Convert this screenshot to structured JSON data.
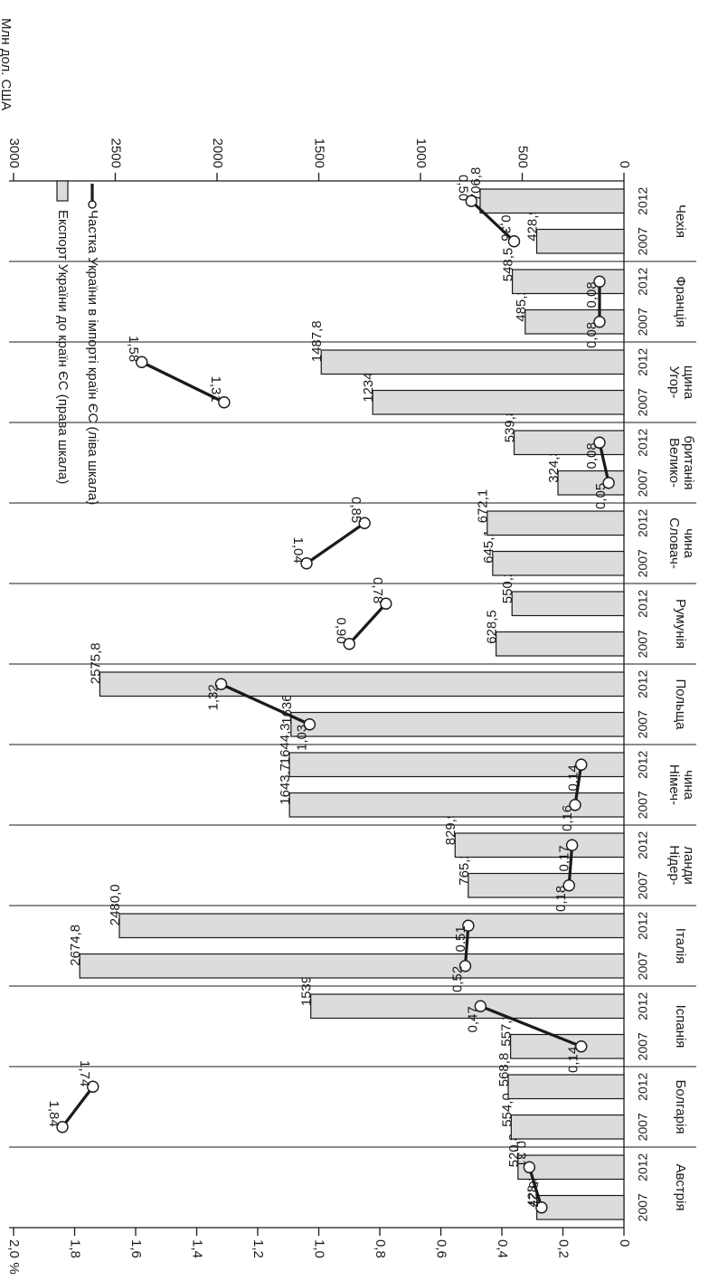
{
  "chart_data": {
    "type": "bar",
    "orientation": "rotated-90-clockwise",
    "left_axis": {
      "unit": "%",
      "ticks": [
        "0",
        "0,2",
        "0,4",
        "0,6",
        "0,8",
        "1,0",
        "1,2",
        "1,4",
        "1,6",
        "1,8",
        "2,0"
      ],
      "range": [
        0,
        2.0
      ]
    },
    "right_axis": {
      "unit": "Млн дол. США",
      "ticks": [
        "0",
        "500",
        "1000",
        "1500",
        "2000",
        "2500",
        "3000"
      ],
      "range": [
        0,
        3000
      ]
    },
    "legend": {
      "placement": "top",
      "entries": [
        "Експорт України до країн ЄС (права шкала)",
        "Частка України в імпорті країн ЄС (ліва шкала)"
      ]
    },
    "categories": [
      {
        "label": "Австрія",
        "years": [
          "2007",
          "2012"
        ],
        "export": [
          428.2,
          520.8
        ],
        "export_labels": [
          "428,2",
          "520,8"
        ],
        "share": [
          0.27,
          0.31
        ],
        "share_labels": [
          "0,27",
          "0,31"
        ],
        "flip_export_labels": true,
        "flip_share_labels": false
      },
      {
        "label": "Болгарія",
        "years": [
          "2007",
          "2012"
        ],
        "export": [
          554.0,
          568.8
        ],
        "export_labels": [
          "554,0",
          "568,8"
        ],
        "share": [
          1.84,
          1.74
        ],
        "share_labels": [
          "1,84",
          "1,74"
        ],
        "flip_export_labels": true,
        "flip_share_labels": false
      },
      {
        "label": "Іспанія",
        "years": [
          "2007",
          "2012"
        ],
        "export": [
          557.3,
          1539.1
        ],
        "export_labels": [
          "557,3",
          "1539,1"
        ],
        "share": [
          0.14,
          0.47
        ],
        "share_labels": [
          "0,14",
          "0,47"
        ],
        "flip_export_labels": true,
        "flip_share_labels": true
      },
      {
        "label": "Італія",
        "years": [
          "2007",
          "2012"
        ],
        "export": [
          2674.8,
          2480.0
        ],
        "export_labels": [
          "2674,8",
          "2480,0"
        ],
        "share": [
          0.52,
          0.51
        ],
        "share_labels": [
          "0,52",
          "0,51"
        ],
        "flip_export_labels": true,
        "flip_share_labels": true
      },
      {
        "label": "Нідер-\nланди",
        "years": [
          "2007",
          "2012"
        ],
        "export": [
          765.2,
          829.9
        ],
        "export_labels": [
          "765,2",
          "829,9"
        ],
        "share": [
          0.18,
          0.17
        ],
        "share_labels": [
          "0,18",
          "0,17"
        ],
        "flip_export_labels": true,
        "flip_share_labels": true
      },
      {
        "label": "Німеч-\nчина",
        "years": [
          "2007",
          "2012"
        ],
        "export": [
          1643.7,
          1644.3
        ],
        "export_labels": [
          "1643,7",
          "1644,3"
        ],
        "share": [
          0.16,
          0.14
        ],
        "share_labels": [
          "0,16",
          "0,14"
        ],
        "flip_export_labels": true,
        "flip_share_labels": true
      },
      {
        "label": "Польща",
        "years": [
          "2007",
          "2012"
        ],
        "export": [
          1636.5,
          2575.8
        ],
        "export_labels": [
          "1636,5",
          "2575,8"
        ],
        "share": [
          1.03,
          1.32
        ],
        "share_labels": [
          "1,03",
          "1,32"
        ],
        "flip_export_labels": true,
        "flip_share_labels": true
      },
      {
        "label": "Румунія",
        "years": [
          "2007",
          "2012"
        ],
        "export": [
          628.5,
          550.2
        ],
        "export_labels": [
          "628,5",
          "550,2"
        ],
        "share": [
          0.9,
          0.78
        ],
        "share_labels": [
          "0,90",
          "0,78"
        ],
        "flip_export_labels": true,
        "flip_share_labels": false
      },
      {
        "label": "Словач-\nчина",
        "years": [
          "2007",
          "2012"
        ],
        "export": [
          645.1,
          672.1
        ],
        "export_labels": [
          "645,1",
          "672,1"
        ],
        "share": [
          1.04,
          0.85
        ],
        "share_labels": [
          "1,04",
          "0,85"
        ],
        "flip_export_labels": true,
        "flip_share_labels": false
      },
      {
        "label": "Велико-\nбританія",
        "years": [
          "2007",
          "2012"
        ],
        "export": [
          324.3,
          539.8
        ],
        "export_labels": [
          "324,3",
          "539,8"
        ],
        "share": [
          0.05,
          0.08
        ],
        "share_labels": [
          "0,05",
          "0,08"
        ],
        "flip_export_labels": true,
        "flip_share_labels": true
      },
      {
        "label": "Угор-\nщина",
        "years": [
          "2007",
          "2012"
        ],
        "export": [
          1234.9,
          1487.8
        ],
        "export_labels": [
          "1234,9",
          "1487,8"
        ],
        "share": [
          1.31,
          1.58
        ],
        "share_labels": [
          "1,31",
          "1,58"
        ],
        "flip_export_labels": true,
        "flip_share_labels": false
      },
      {
        "label": "Франція",
        "years": [
          "2007",
          "2012"
        ],
        "export": [
          485.2,
          548.5
        ],
        "export_labels": [
          "485,2",
          "548,5"
        ],
        "share": [
          0.08,
          0.08
        ],
        "share_labels": [
          "0,08",
          "0,08"
        ],
        "flip_export_labels": true,
        "flip_share_labels": true
      },
      {
        "label": "Чехія",
        "years": [
          "2007",
          "2012"
        ],
        "export": [
          428.9,
          706.8
        ],
        "export_labels": [
          "428,9",
          "706,8"
        ],
        "share": [
          0.36,
          0.5
        ],
        "share_labels": [
          "0,36",
          "0,50"
        ],
        "flip_export_labels": true,
        "flip_share_labels": false
      }
    ]
  }
}
